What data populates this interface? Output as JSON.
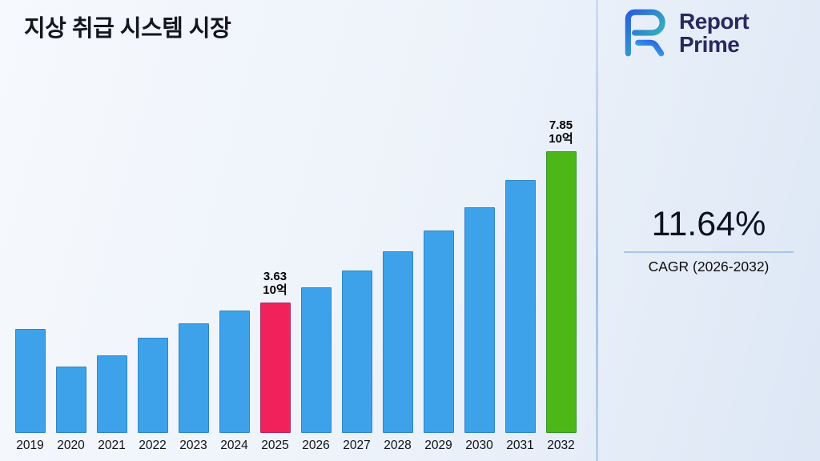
{
  "header": {
    "title": "지상 취급 시스템 시장"
  },
  "logo": {
    "line1": "Report",
    "line2": "Prime"
  },
  "stats": {
    "value": "11.64%",
    "label": "CAGR (2026-2032)"
  },
  "chart_data": {
    "type": "bar",
    "title": "지상 취급 시스템 시장",
    "categories": [
      "2019",
      "2020",
      "2021",
      "2022",
      "2023",
      "2024",
      "2025",
      "2026",
      "2027",
      "2028",
      "2029",
      "2030",
      "2031",
      "2032"
    ],
    "values": [
      2.9,
      1.85,
      2.15,
      2.65,
      3.05,
      3.4,
      3.63,
      4.05,
      4.52,
      5.05,
      5.63,
      6.29,
      7.03,
      7.85
    ],
    "unit": "10억",
    "xlabel": "",
    "ylabel": "",
    "ylim": [
      0,
      8.6
    ],
    "grid": false,
    "legend": false,
    "bar_colors": {
      "default": "#3DA2EA",
      "2025": "#F1215C",
      "2032": "#4CB717"
    },
    "annotations": [
      {
        "category": "2025",
        "lines": [
          "3.63",
          "10억"
        ]
      },
      {
        "category": "2032",
        "lines": [
          "7.85",
          "10억"
        ]
      }
    ]
  }
}
